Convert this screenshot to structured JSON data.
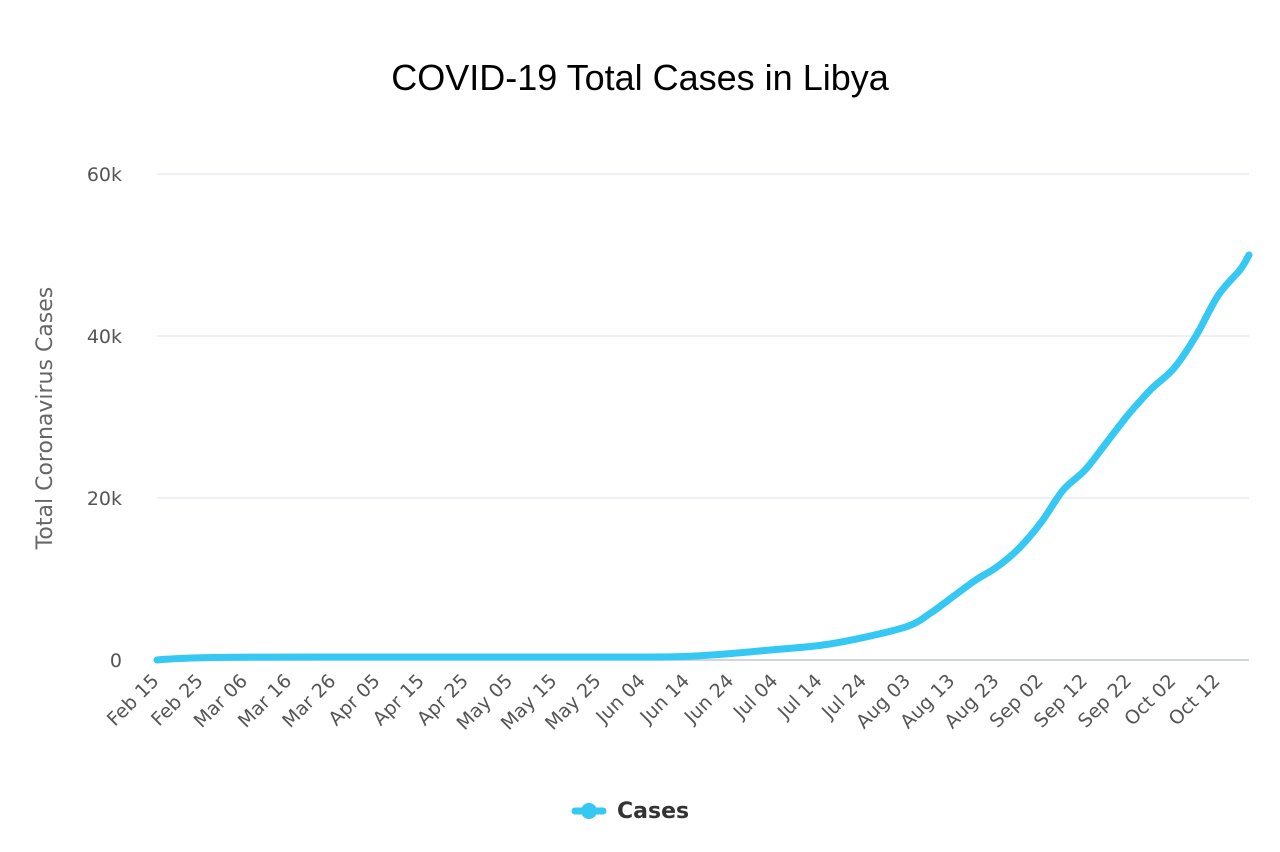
{
  "chart_data": {
    "type": "line",
    "title": "COVID-19 Total Cases in Libya",
    "xlabel": "",
    "ylabel": "Total Coronavirus Cases",
    "x_tick_labels": [
      "Feb 15",
      "Feb 25",
      "Mar 06",
      "Mar 16",
      "Mar 26",
      "Apr 05",
      "Apr 15",
      "Apr 25",
      "May 05",
      "May 15",
      "May 25",
      "Jun 04",
      "Jun 14",
      "Jun 24",
      "Jul 04",
      "Jul 14",
      "Jul 24",
      "Aug 03",
      "Aug 13",
      "Aug 23",
      "Sep 02",
      "Sep 12",
      "Sep 22",
      "Oct 02",
      "Oct 12"
    ],
    "y_tick_labels": [
      "0",
      "20k",
      "40k",
      "60k"
    ],
    "y_ticks": [
      0,
      20000,
      40000,
      60000
    ],
    "ylim": [
      0,
      60000
    ],
    "xlim": [
      "Feb 15",
      "Oct 19"
    ],
    "grid": true,
    "legend_position": "bottom-center",
    "series": [
      {
        "name": "Cases",
        "color": "#35c8f2",
        "x": [
          "Feb 15",
          "Mar 24",
          "May 25",
          "Jun 04",
          "Jun 14",
          "Jun 24",
          "Jul 04",
          "Jul 14",
          "Jul 24",
          "Aug 03",
          "Aug 08",
          "Aug 13",
          "Aug 18",
          "Aug 23",
          "Aug 28",
          "Sep 02",
          "Sep 07",
          "Sep 12",
          "Sep 17",
          "Sep 22",
          "Sep 27",
          "Oct 02",
          "Oct 07",
          "Oct 12",
          "Oct 17",
          "Oct 19"
        ],
        "values": [
          0,
          1,
          100,
          250,
          450,
          800,
          1300,
          1800,
          2800,
          4200,
          5800,
          7800,
          9800,
          11500,
          13800,
          17000,
          21000,
          23500,
          27000,
          30500,
          33500,
          36000,
          40000,
          45000,
          48200,
          50000
        ]
      }
    ]
  }
}
